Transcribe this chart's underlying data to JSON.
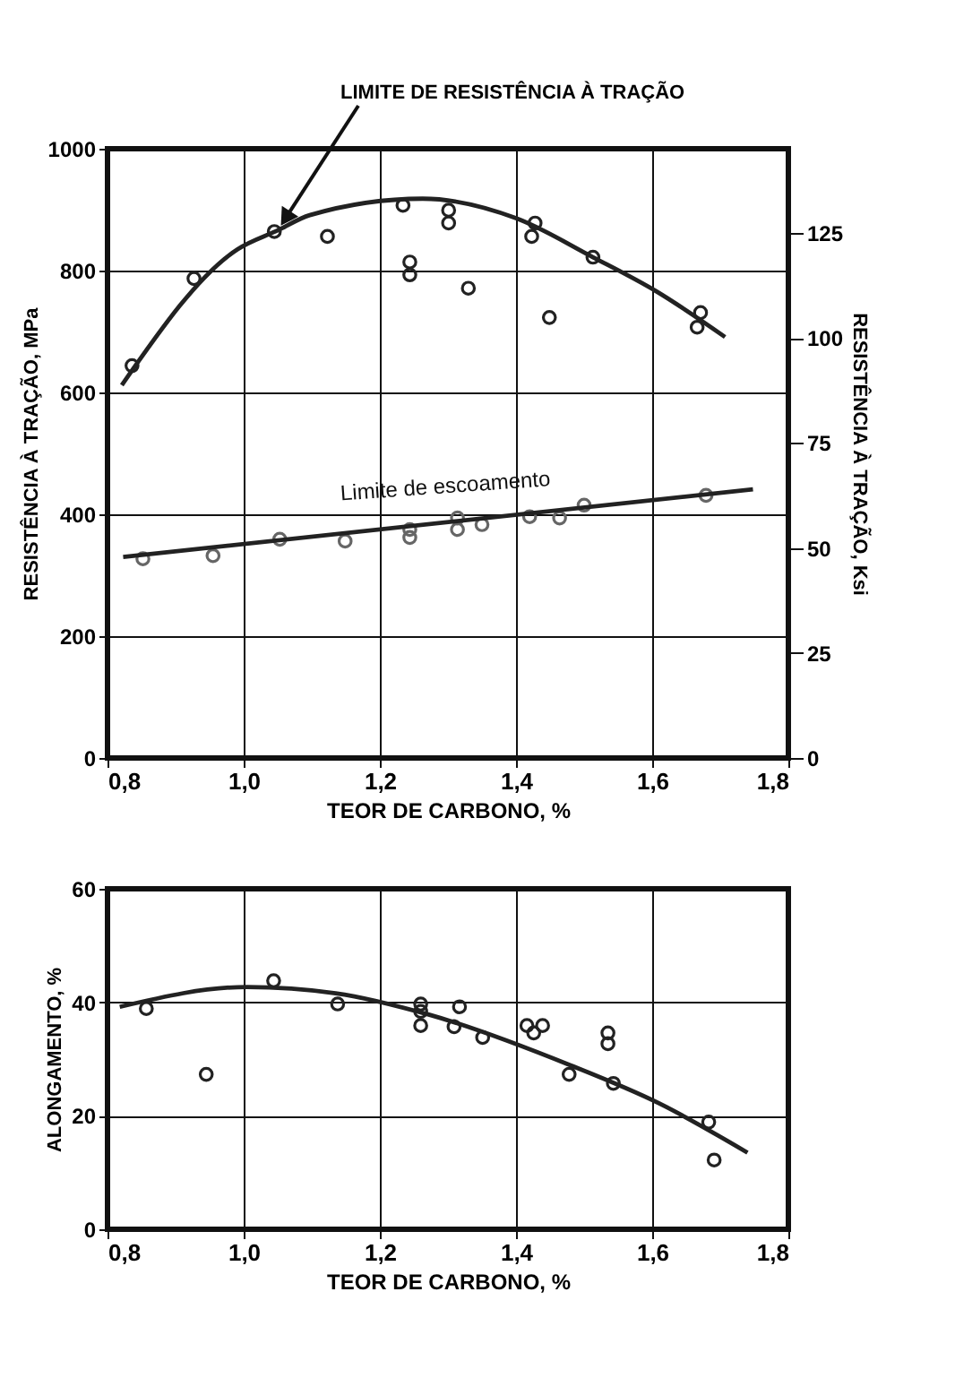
{
  "chart_data": [
    {
      "type": "scatter",
      "xlabel": "TEOR DE CARBONO, %",
      "ylabel": "RESISTÊNCIA À TRAÇÃO, MPa",
      "y2label": "RESISTÊNCIA À TRAÇÃO, Ksi",
      "xlim": [
        0.8,
        1.8
      ],
      "xticks": [
        {
          "value": 0.8,
          "label": "0,8"
        },
        {
          "value": 1.0,
          "label": "1,0"
        },
        {
          "value": 1.2,
          "label": "1,2"
        },
        {
          "value": 1.4,
          "label": "1,4"
        },
        {
          "value": 1.6,
          "label": "1,6"
        },
        {
          "value": 1.8,
          "label": "1,8"
        }
      ],
      "ylim": [
        0,
        1000
      ],
      "yticks": [
        0,
        200,
        400,
        600,
        800,
        1000
      ],
      "y2lim": [
        0,
        145
      ],
      "y2ticks": [
        0,
        25,
        50,
        75,
        100,
        125
      ],
      "grid": true,
      "annotations": [
        {
          "text": "LIMITE DE RESISTÊNCIA À TRAÇÃO",
          "x": 1.05,
          "y": 866
        },
        {
          "text": "Limite de escoamento",
          "x": 1.3,
          "y": 385
        }
      ],
      "series": [
        {
          "marker": "circle",
          "color": "#222222",
          "x": [
            0.836,
            0.927,
            1.045,
            1.123,
            1.234,
            1.301,
            1.301,
            1.244,
            1.244,
            1.33,
            1.428,
            1.423,
            1.449,
            1.513,
            1.671,
            1.666
          ],
          "values": [
            644,
            787,
            864,
            856,
            907,
            899,
            878,
            814,
            793,
            771,
            878,
            856,
            723,
            822,
            731,
            707
          ]
        },
        {
          "type": "line",
          "marker": "none",
          "color": "#222222",
          "x": [
            0.821,
            0.991,
            1.05,
            1.097,
            1.263,
            1.4,
            1.513,
            1.606,
            1.707
          ],
          "values": [
            612,
            835,
            866,
            891,
            918,
            886,
            822,
            766,
            691
          ]
        },
        {
          "marker": "circle",
          "color": "#666666",
          "x": [
            0.852,
            0.955,
            1.053,
            1.149,
            1.244,
            1.244,
            1.314,
            1.314,
            1.35,
            1.42,
            1.464,
            1.5,
            1.679
          ],
          "values": [
            327,
            332,
            359,
            356,
            375,
            362,
            394,
            375,
            383,
            396,
            394,
            415,
            431
          ]
        },
        {
          "type": "line",
          "marker": "none",
          "color": "#222222",
          "x": [
            0.823,
            1.748
          ],
          "values": [
            330,
            441
          ]
        }
      ]
    },
    {
      "type": "scatter",
      "xlabel": "TEOR DE CARBONO, %",
      "ylabel": "ALONGAMENTO, %",
      "xlim": [
        0.8,
        1.8
      ],
      "xticks": [
        {
          "value": 0.8,
          "label": "0,8"
        },
        {
          "value": 1.0,
          "label": "1,0"
        },
        {
          "value": 1.2,
          "label": "1,2"
        },
        {
          "value": 1.4,
          "label": "1,4"
        },
        {
          "value": 1.6,
          "label": "1,6"
        },
        {
          "value": 1.8,
          "label": "1,8"
        }
      ],
      "ylim": [
        0,
        60
      ],
      "yticks": [
        0,
        20,
        40,
        60
      ],
      "grid": true,
      "series": [
        {
          "marker": "circle",
          "color": "#222222",
          "x": [
            0.857,
            0.945,
            1.044,
            1.138,
            1.26,
            1.26,
            1.26,
            1.317,
            1.309,
            1.351,
            1.416,
            1.439,
            1.426,
            1.478,
            1.535,
            1.535,
            1.543,
            1.683,
            1.691
          ],
          "values": [
            38.9,
            27.3,
            43.8,
            39.7,
            39.7,
            38.4,
            35.9,
            39.2,
            35.7,
            33.8,
            35.9,
            35.9,
            34.6,
            27.3,
            34.6,
            32.7,
            25.7,
            18.9,
            12.2
          ]
        },
        {
          "type": "line",
          "marker": "none",
          "color": "#222222",
          "x": [
            0.818,
            1.005,
            1.135,
            1.273,
            1.48,
            1.61,
            1.74
          ],
          "values": [
            39.2,
            42.7,
            41.6,
            37.8,
            28.9,
            22.2,
            13.5
          ]
        }
      ]
    }
  ]
}
